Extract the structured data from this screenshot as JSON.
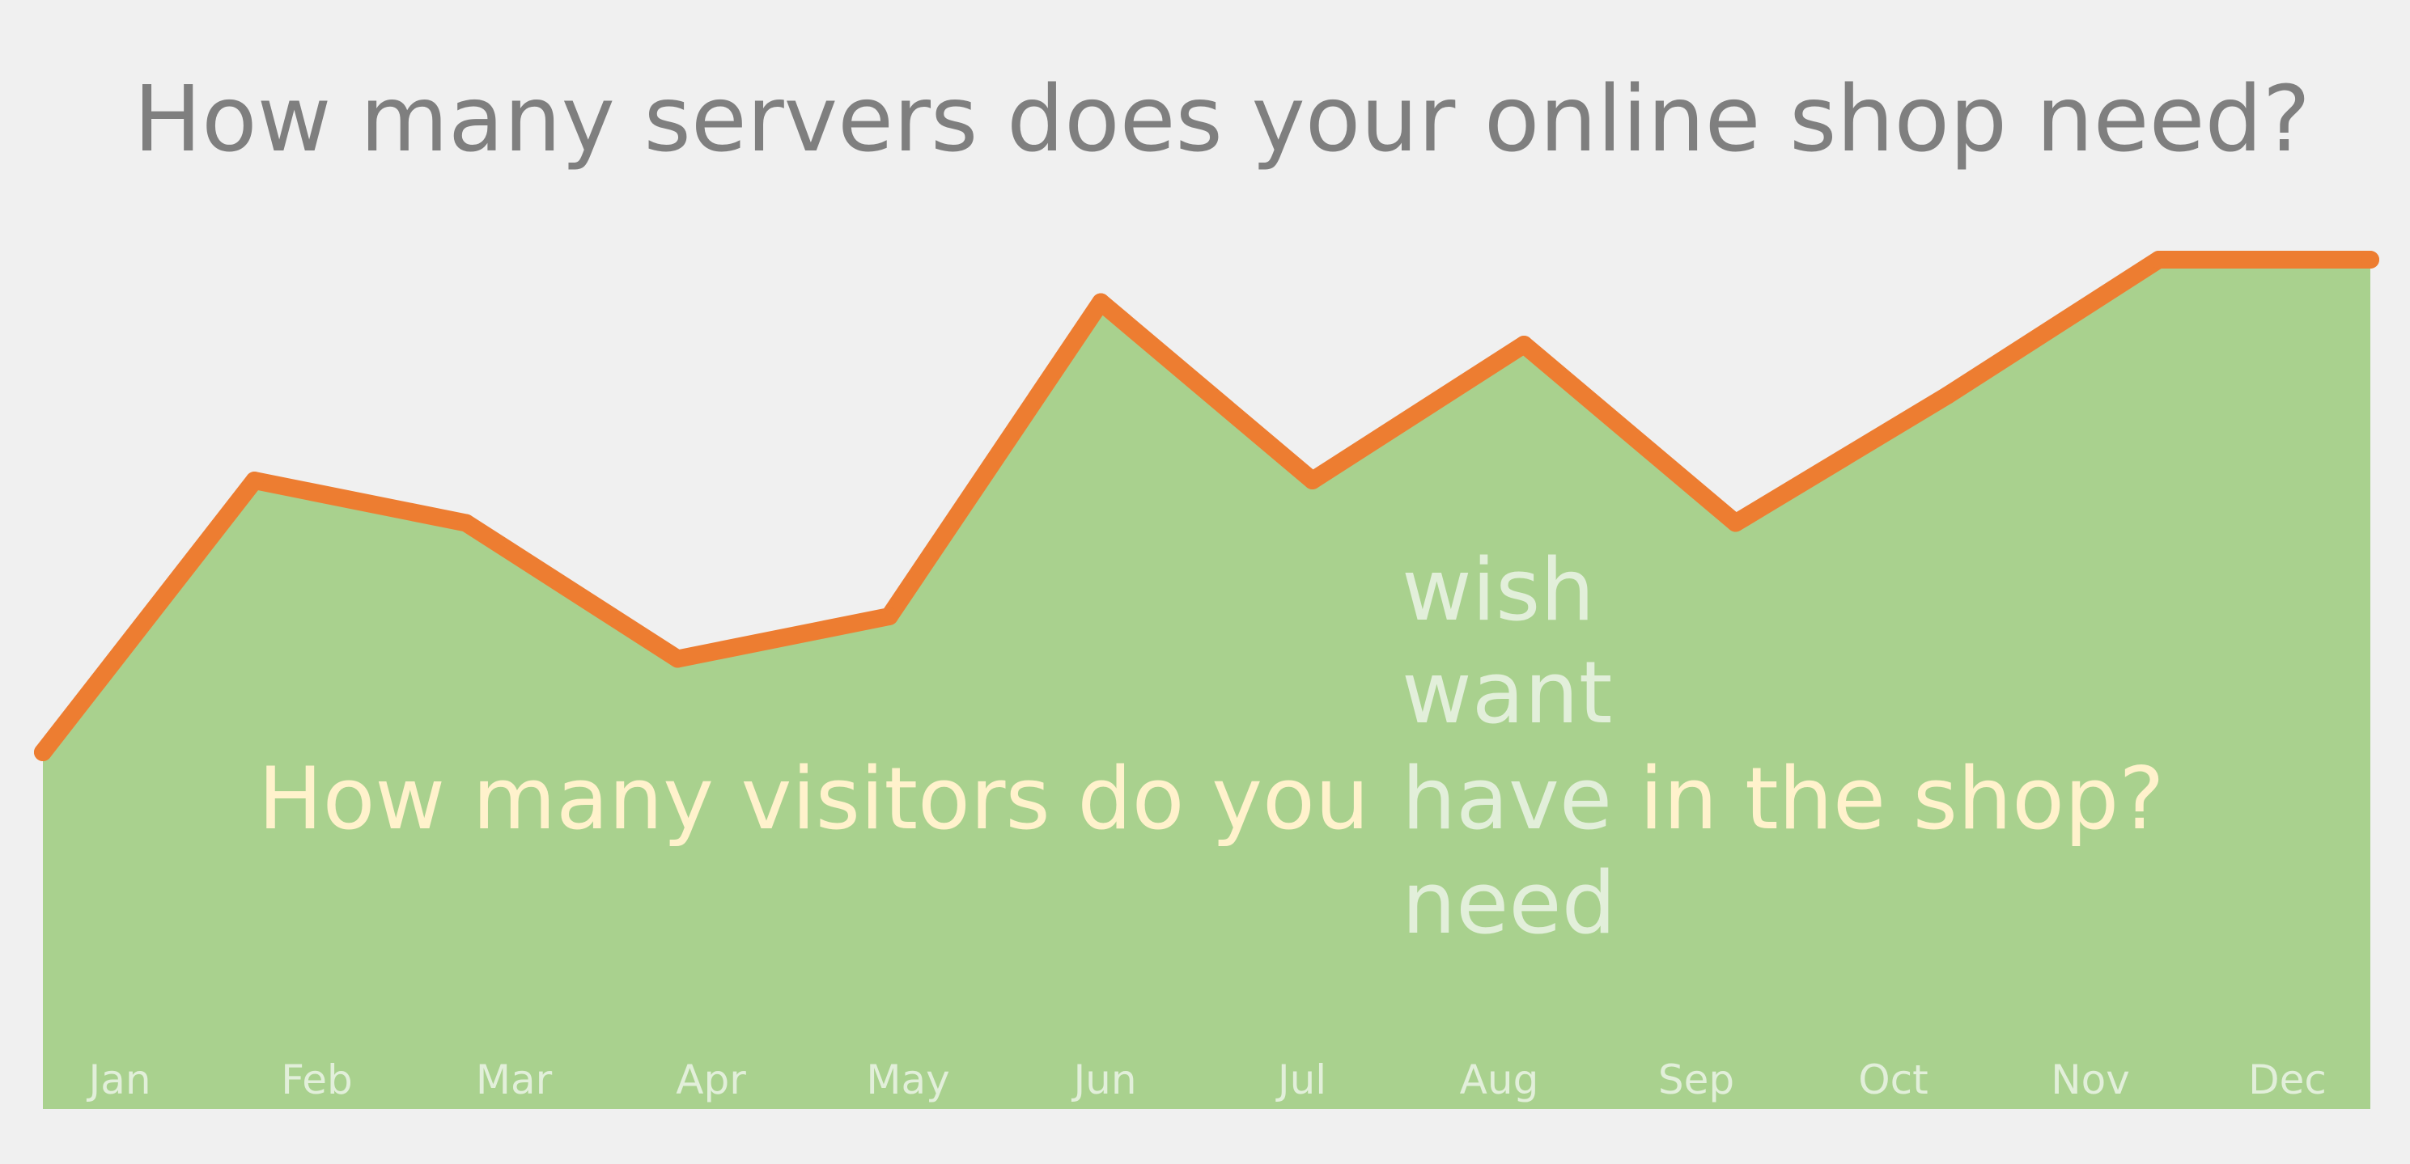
{
  "chart_data": {
    "type": "area",
    "title": "How many servers does your online shop need?",
    "categories": [
      "Jan",
      "Feb",
      "Mar",
      "Apr",
      "May",
      "Jun",
      "Jul",
      "Aug",
      "Sep",
      "Oct",
      "Nov",
      "Dec"
    ],
    "values": [
      42,
      74,
      69,
      53,
      58,
      95,
      74,
      90,
      69,
      84,
      100,
      100
    ],
    "ylim": [
      0,
      100
    ],
    "grid": false,
    "xlabel": "",
    "ylabel": "",
    "annotation": {
      "prefix": "How many visitors do you",
      "keyword": "have",
      "suffix": " in the shop?",
      "alternatives_above": [
        "wish",
        "want"
      ],
      "alternatives_below": [
        "need"
      ]
    },
    "colors": {
      "background": "#f0f0f0",
      "title": "#7f7f7f",
      "area": "#a9d18e",
      "line": "#ed7d31",
      "tick_labels": "#e2efda",
      "annotation": "#fff2cc",
      "alternatives": "#e2efda"
    }
  }
}
